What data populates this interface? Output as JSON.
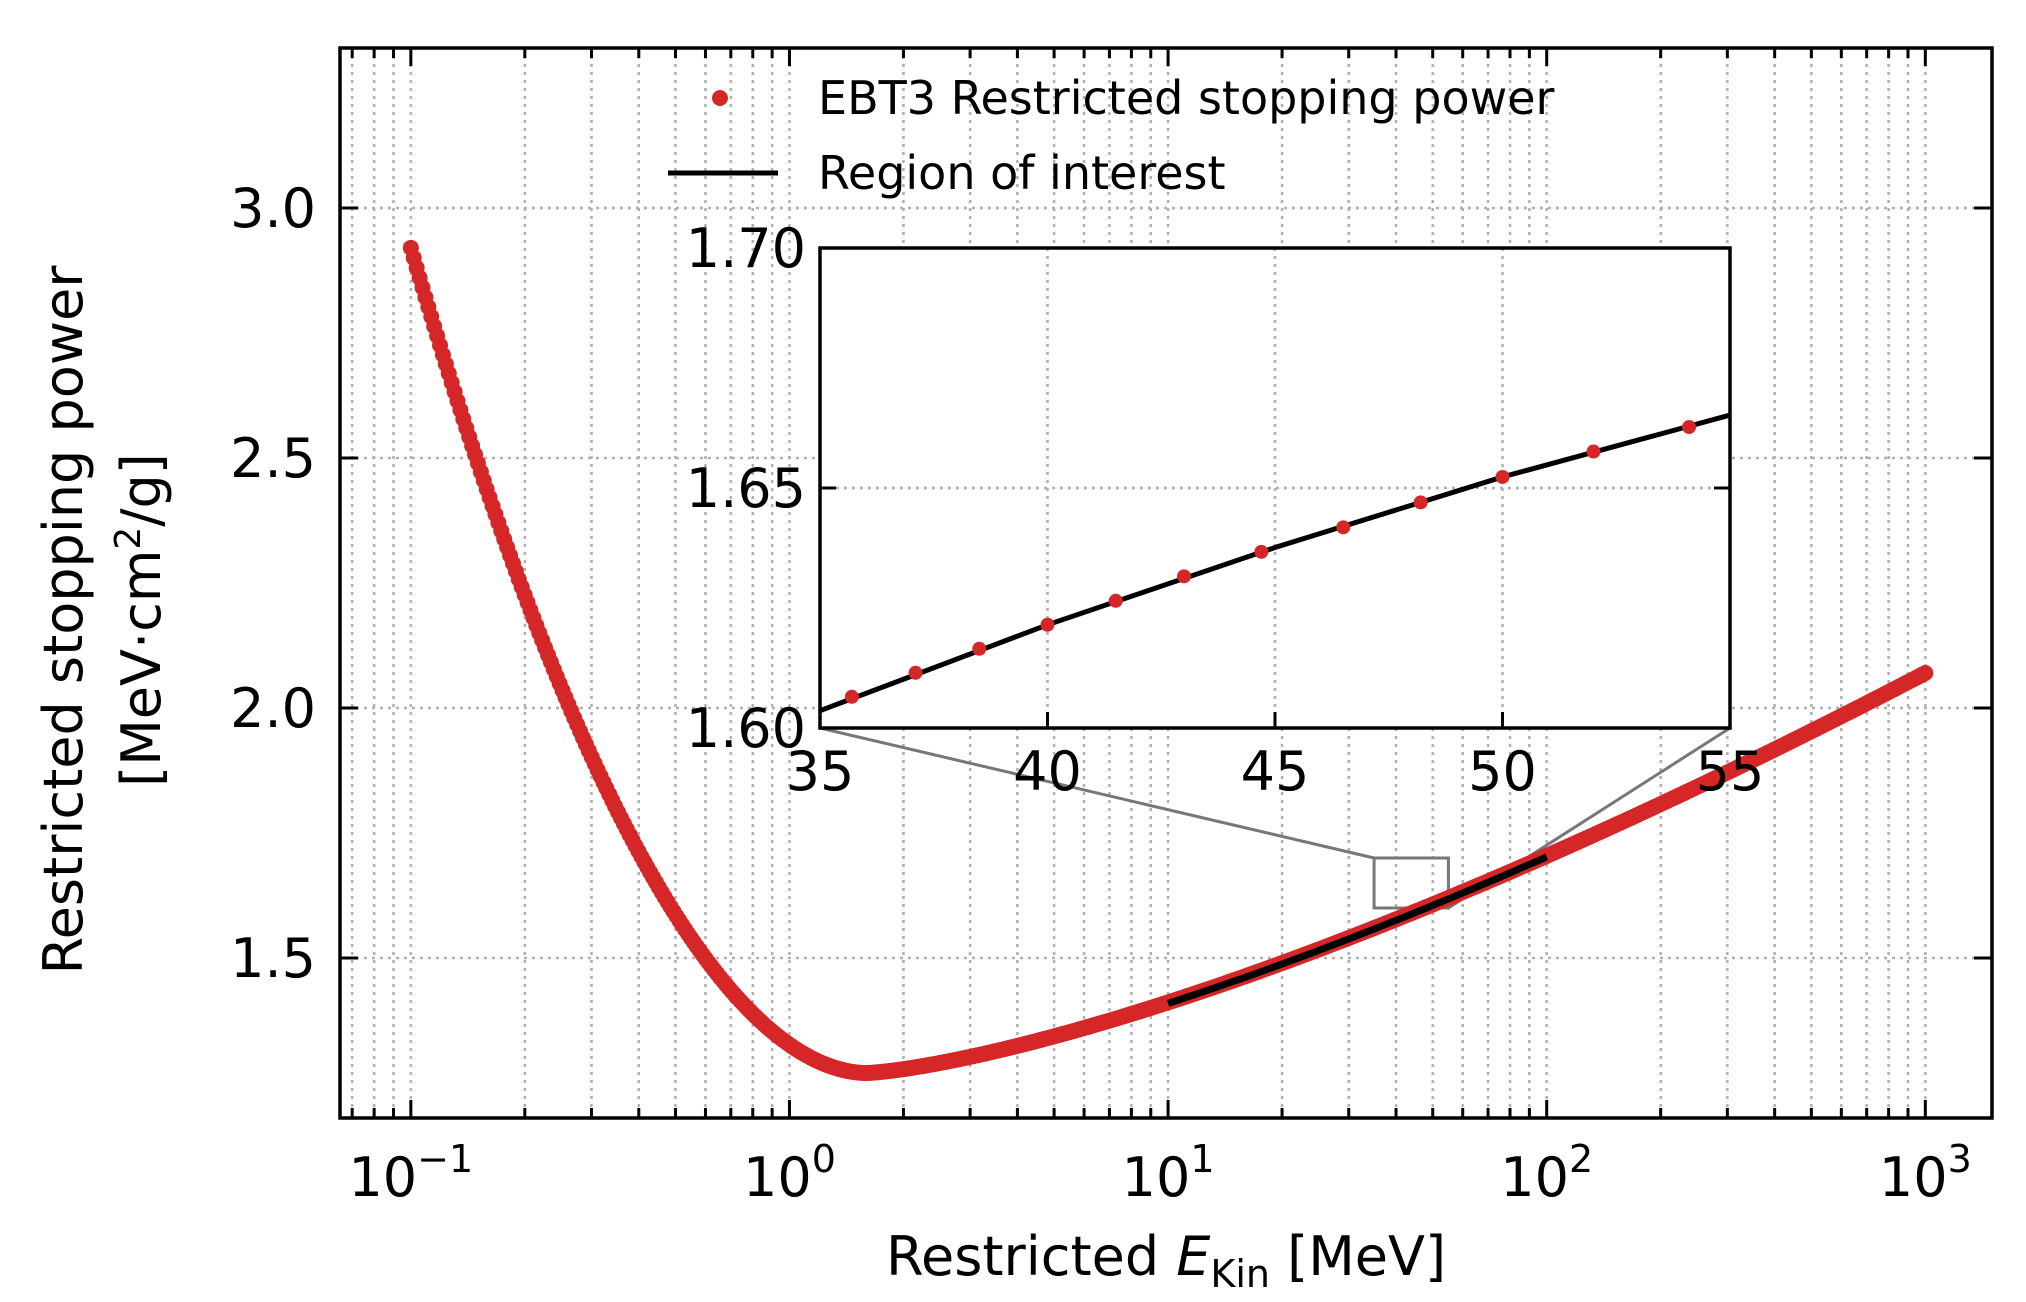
{
  "chart_data": [
    {
      "type": "scatter",
      "x_scale": "log",
      "xlim": [
        0.065,
        1500
      ],
      "ylim": [
        1.18,
        3.32
      ],
      "grid": true,
      "legend_position": "top-center",
      "xlabel": {
        "prefix": "Restricted ",
        "var": "E",
        "sub": "Kin",
        "suffix": " [MeV]"
      },
      "ylabel": {
        "line1": "Restricted stopping power",
        "line2_pre": "[MeV·cm",
        "line2_sup": "2",
        "line2_post": "/g]"
      },
      "x_ticks": [
        {
          "value": 0.1,
          "base": "10",
          "exp": "−1"
        },
        {
          "value": 1,
          "base": "10",
          "exp": "0"
        },
        {
          "value": 10,
          "base": "10",
          "exp": "1"
        },
        {
          "value": 100,
          "base": "10",
          "exp": "2"
        },
        {
          "value": 1000,
          "base": "10",
          "exp": "3"
        }
      ],
      "y_ticks": [
        {
          "value": 1.5,
          "label": "1.5"
        },
        {
          "value": 2.0,
          "label": "2.0"
        },
        {
          "value": 2.5,
          "label": "2.5"
        },
        {
          "value": 3.0,
          "label": "3.0"
        }
      ],
      "series": [
        {
          "name": "EBT3 Restricted stopping power",
          "color": "#d62728",
          "marker": "dot",
          "x_range": [
            0.1,
            1000
          ],
          "min_point": [
            1.6,
            1.27
          ]
        },
        {
          "name": "Region of interest",
          "color": "#000000",
          "marker": "line",
          "x_range": [
            10,
            100
          ]
        }
      ],
      "zoom_box": {
        "x_range": [
          35,
          55
        ],
        "y_range": [
          1.6,
          1.7
        ]
      }
    },
    {
      "type": "scatter",
      "inset": true,
      "xlim": [
        35,
        55
      ],
      "ylim": [
        1.6,
        1.7
      ],
      "grid": true,
      "x_ticks": [
        {
          "value": 35,
          "label": "35"
        },
        {
          "value": 40,
          "label": "40"
        },
        {
          "value": 45,
          "label": "45"
        },
        {
          "value": 50,
          "label": "50"
        },
        {
          "value": 55,
          "label": "55"
        }
      ],
      "y_ticks": [
        {
          "value": 1.6,
          "label": "1.60"
        },
        {
          "value": 1.65,
          "label": "1.65"
        },
        {
          "value": 1.7,
          "label": "1.70"
        }
      ],
      "points": [
        [
          35.7,
          1.6065
        ],
        [
          37.1,
          1.6115
        ],
        [
          38.5,
          1.6165
        ],
        [
          40.0,
          1.6215
        ],
        [
          41.5,
          1.6265
        ],
        [
          43.0,
          1.6316
        ],
        [
          44.7,
          1.6367
        ],
        [
          46.5,
          1.6418
        ],
        [
          48.2,
          1.647
        ],
        [
          50.0,
          1.6523
        ],
        [
          52.0,
          1.6576
        ],
        [
          54.1,
          1.6627
        ]
      ],
      "line": [
        [
          35,
          1.6036
        ],
        [
          40,
          1.6215
        ],
        [
          45,
          1.6376
        ],
        [
          50,
          1.6523
        ],
        [
          55,
          1.6652
        ]
      ]
    }
  ]
}
